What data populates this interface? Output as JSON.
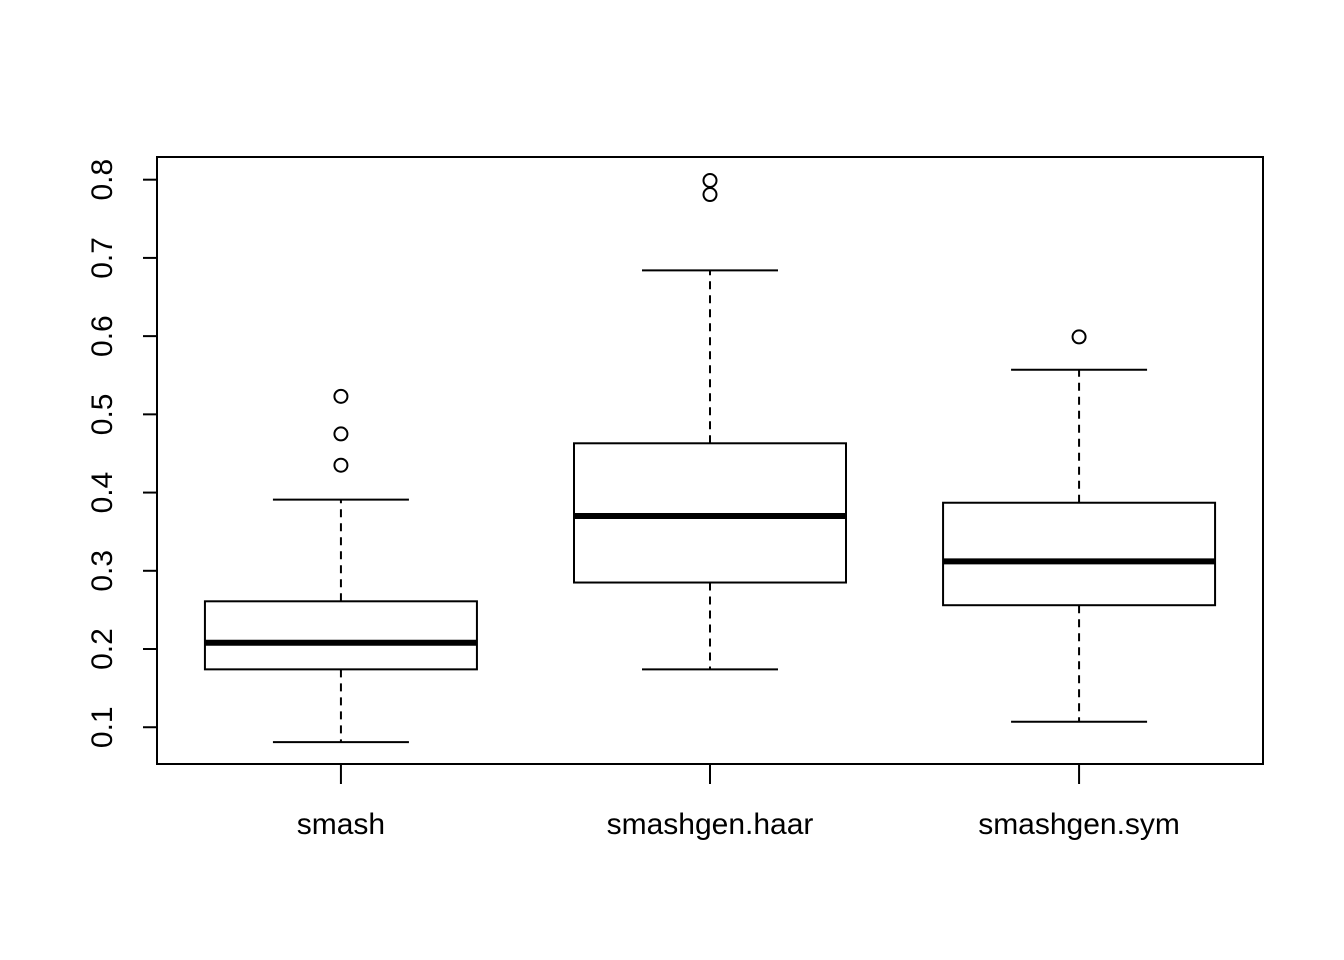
{
  "chart_data": {
    "type": "boxplot",
    "title": "",
    "xlabel": "",
    "ylabel": "",
    "ylim": [
      0.053,
      0.829
    ],
    "yticks": [
      0.1,
      0.2,
      0.3,
      0.4,
      0.5,
      0.6,
      0.7,
      0.8
    ],
    "ytick_labels": [
      "0.1",
      "0.2",
      "0.3",
      "0.4",
      "0.5",
      "0.6",
      "0.7",
      "0.8"
    ],
    "grid": false,
    "legend": "none",
    "categories": [
      "smash",
      "smashgen.haar",
      "smashgen.sym"
    ],
    "boxes": [
      {
        "category": "smash",
        "whisker_low": 0.081,
        "q1": 0.174,
        "median": 0.208,
        "q3": 0.261,
        "whisker_high": 0.391,
        "outliers": [
          0.435,
          0.475,
          0.523
        ]
      },
      {
        "category": "smashgen.haar",
        "whisker_low": 0.174,
        "q1": 0.285,
        "median": 0.37,
        "q3": 0.463,
        "whisker_high": 0.684,
        "outliers": [
          0.781,
          0.799
        ]
      },
      {
        "category": "smashgen.sym",
        "whisker_low": 0.107,
        "q1": 0.256,
        "median": 0.312,
        "q3": 0.387,
        "whisker_high": 0.557,
        "outliers": [
          0.599
        ]
      }
    ],
    "colors": {
      "box_fill": "#ffffff",
      "stroke": "#000000"
    }
  }
}
